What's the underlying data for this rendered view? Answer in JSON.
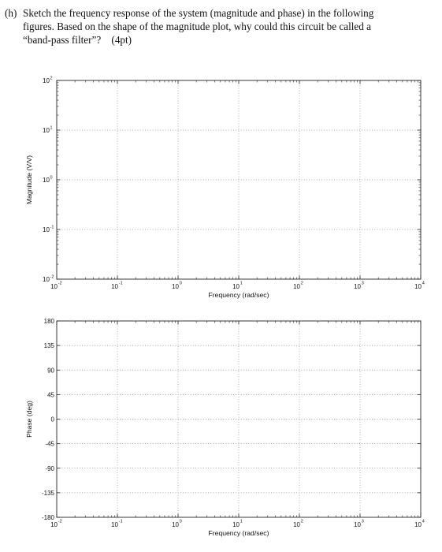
{
  "question": {
    "label": "(h)",
    "line1": "Sketch the frequency response of the system (magnitude and phase) in the following",
    "line2": "figures. Based on the shape of the magnitude plot, why could this circuit be called a",
    "line3": "“band-pass filter”?",
    "points": "(4pt)"
  },
  "chart_data": [
    {
      "type": "line",
      "title": "",
      "xlabel": "Frequency (rad/sec)",
      "ylabel": "Magnitude (V/V)",
      "xscale": "log",
      "yscale": "log",
      "xlim": [
        0.01,
        10000
      ],
      "ylim": [
        0.01,
        100
      ],
      "x_ticks": [
        {
          "base": "10",
          "exp": "-2"
        },
        {
          "base": "10",
          "exp": "-1"
        },
        {
          "base": "10",
          "exp": "0"
        },
        {
          "base": "10",
          "exp": "1"
        },
        {
          "base": "10",
          "exp": "2"
        },
        {
          "base": "10",
          "exp": "3"
        },
        {
          "base": "10",
          "exp": "4"
        }
      ],
      "y_ticks": [
        {
          "base": "10",
          "exp": "2"
        },
        {
          "base": "10",
          "exp": "1"
        },
        {
          "base": "10",
          "exp": "0"
        },
        {
          "base": "10",
          "exp": "-1"
        },
        {
          "base": "10",
          "exp": "-2"
        }
      ],
      "grid": true,
      "series": []
    },
    {
      "type": "line",
      "title": "",
      "xlabel": "Frequency (rad/sec)",
      "ylabel": "Phase (deg)",
      "xscale": "log",
      "xlim": [
        0.01,
        10000
      ],
      "ylim": [
        -180,
        180
      ],
      "x_ticks": [
        {
          "base": "10",
          "exp": "-2"
        },
        {
          "base": "10",
          "exp": "-1"
        },
        {
          "base": "10",
          "exp": "0"
        },
        {
          "base": "10",
          "exp": "1"
        },
        {
          "base": "10",
          "exp": "2"
        },
        {
          "base": "10",
          "exp": "3"
        },
        {
          "base": "10",
          "exp": "4"
        }
      ],
      "y_ticks": [
        "180",
        "135",
        "90",
        "45",
        "0",
        "-45",
        "-90",
        "-135",
        "-180"
      ],
      "grid": true,
      "series": []
    }
  ]
}
